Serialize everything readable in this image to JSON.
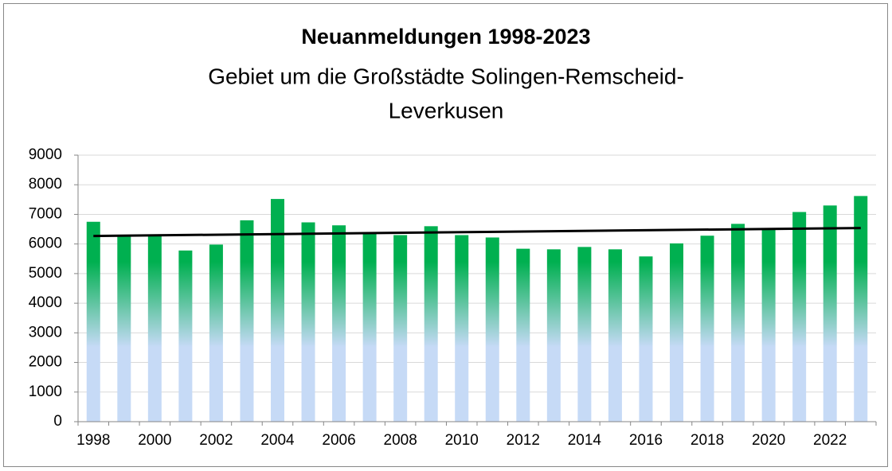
{
  "chart_data": {
    "type": "bar",
    "title": "Neuanmeldungen 1998-2023",
    "subtitle": [
      "Gebiet um die Großstädte Solingen-Remscheid-",
      "Leverkusen"
    ],
    "categories": [
      "1998",
      null,
      "2000",
      null,
      "2002",
      null,
      "2004",
      null,
      "2006",
      null,
      "2008",
      null,
      "2010",
      null,
      "2012",
      null,
      "2014",
      null,
      "2016",
      null,
      "2018",
      null,
      "2020",
      null,
      "2022",
      null
    ],
    "values": [
      6750,
      6280,
      6300,
      5780,
      5980,
      6800,
      7520,
      6730,
      6630,
      6380,
      6300,
      6600,
      6300,
      6220,
      5840,
      5820,
      5900,
      5820,
      5580,
      6020,
      6280,
      6680,
      6500,
      7080,
      7300,
      7620
    ],
    "colors": [
      "#00b050",
      "#c6daf6"
    ],
    "trend": [
      6270,
      6540
    ],
    "trend_color": "#000000",
    "ylim": [
      0,
      9000
    ],
    "yticks": [
      0,
      1000,
      2000,
      3000,
      4000,
      5000,
      6000,
      7000,
      8000,
      9000
    ],
    "grid": true
  }
}
